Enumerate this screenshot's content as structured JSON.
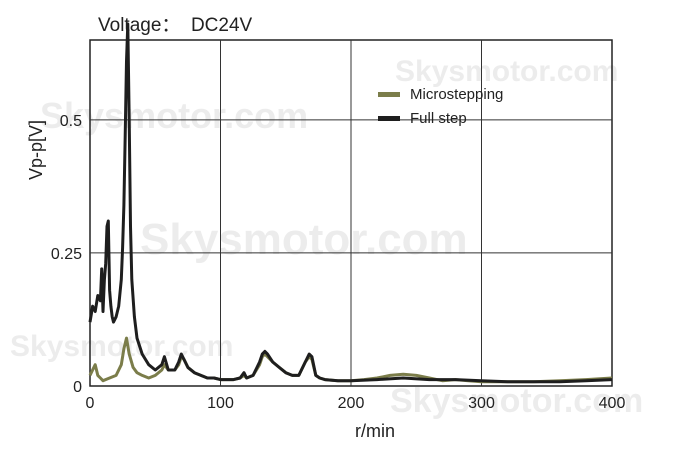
{
  "chart_data": {
    "type": "line",
    "title": "Voltage：  DC24V",
    "xlabel": "r/min",
    "ylabel": "Vp-p[V]",
    "xlim": [
      0,
      400
    ],
    "ylim": [
      0,
      0.65
    ],
    "xticks": [
      0,
      100,
      200,
      300,
      400
    ],
    "xtick_labels": [
      "0",
      "100",
      "200",
      "300",
      "400"
    ],
    "yticks": [
      0,
      0.25,
      0.5
    ],
    "ytick_labels": [
      "0",
      "0.25",
      "0.5"
    ],
    "grid": true,
    "legend_position": "top-right",
    "series": [
      {
        "name": "Microstepping",
        "color": "#7b7d4a",
        "x": [
          0,
          2,
          4,
          6,
          8,
          10,
          15,
          20,
          24,
          26,
          28,
          30,
          33,
          36,
          40,
          45,
          50,
          55,
          57,
          60,
          65,
          68,
          70,
          72,
          75,
          80,
          85,
          90,
          95,
          100,
          110,
          115,
          118,
          120,
          125,
          130,
          132,
          134,
          136,
          140,
          145,
          150,
          155,
          160,
          165,
          168,
          170,
          173,
          176,
          180,
          190,
          200,
          210,
          220,
          230,
          240,
          250,
          260,
          270,
          280,
          290,
          300,
          320,
          340,
          360,
          380,
          400
        ],
        "y": [
          0.02,
          0.03,
          0.04,
          0.02,
          0.015,
          0.01,
          0.015,
          0.02,
          0.04,
          0.07,
          0.09,
          0.06,
          0.035,
          0.025,
          0.02,
          0.015,
          0.02,
          0.03,
          0.04,
          0.03,
          0.03,
          0.04,
          0.055,
          0.05,
          0.035,
          0.025,
          0.02,
          0.015,
          0.015,
          0.012,
          0.012,
          0.015,
          0.02,
          0.015,
          0.02,
          0.04,
          0.055,
          0.06,
          0.055,
          0.045,
          0.035,
          0.025,
          0.02,
          0.02,
          0.045,
          0.055,
          0.05,
          0.02,
          0.015,
          0.012,
          0.01,
          0.01,
          0.012,
          0.015,
          0.02,
          0.022,
          0.02,
          0.015,
          0.01,
          0.012,
          0.01,
          0.008,
          0.008,
          0.008,
          0.01,
          0.012,
          0.015
        ]
      },
      {
        "name": "Full step",
        "color": "#1e1e1e",
        "x": [
          0,
          2,
          4,
          6,
          8,
          9,
          10,
          11,
          12,
          13,
          14,
          15,
          16,
          17,
          18,
          20,
          22,
          24,
          25,
          26,
          27,
          28,
          29,
          30,
          31,
          32,
          34,
          36,
          40,
          45,
          50,
          55,
          57,
          60,
          65,
          68,
          70,
          72,
          75,
          80,
          85,
          90,
          95,
          100,
          110,
          115,
          118,
          120,
          125,
          130,
          132,
          134,
          136,
          140,
          145,
          150,
          155,
          160,
          165,
          168,
          170,
          173,
          176,
          180,
          190,
          200,
          220,
          240,
          260,
          280,
          300,
          320,
          340,
          360,
          380,
          400
        ],
        "y": [
          0.12,
          0.15,
          0.14,
          0.17,
          0.16,
          0.22,
          0.14,
          0.2,
          0.23,
          0.3,
          0.31,
          0.18,
          0.15,
          0.13,
          0.12,
          0.13,
          0.15,
          0.2,
          0.26,
          0.34,
          0.47,
          0.61,
          0.68,
          0.5,
          0.3,
          0.2,
          0.13,
          0.09,
          0.06,
          0.04,
          0.03,
          0.04,
          0.055,
          0.03,
          0.03,
          0.045,
          0.06,
          0.05,
          0.035,
          0.025,
          0.02,
          0.015,
          0.015,
          0.012,
          0.012,
          0.015,
          0.025,
          0.015,
          0.02,
          0.045,
          0.06,
          0.065,
          0.06,
          0.045,
          0.035,
          0.025,
          0.02,
          0.02,
          0.045,
          0.06,
          0.055,
          0.02,
          0.015,
          0.012,
          0.01,
          0.01,
          0.012,
          0.015,
          0.012,
          0.012,
          0.01,
          0.008,
          0.008,
          0.008,
          0.01,
          0.012
        ]
      }
    ],
    "watermark": "Skysmotor.com"
  }
}
